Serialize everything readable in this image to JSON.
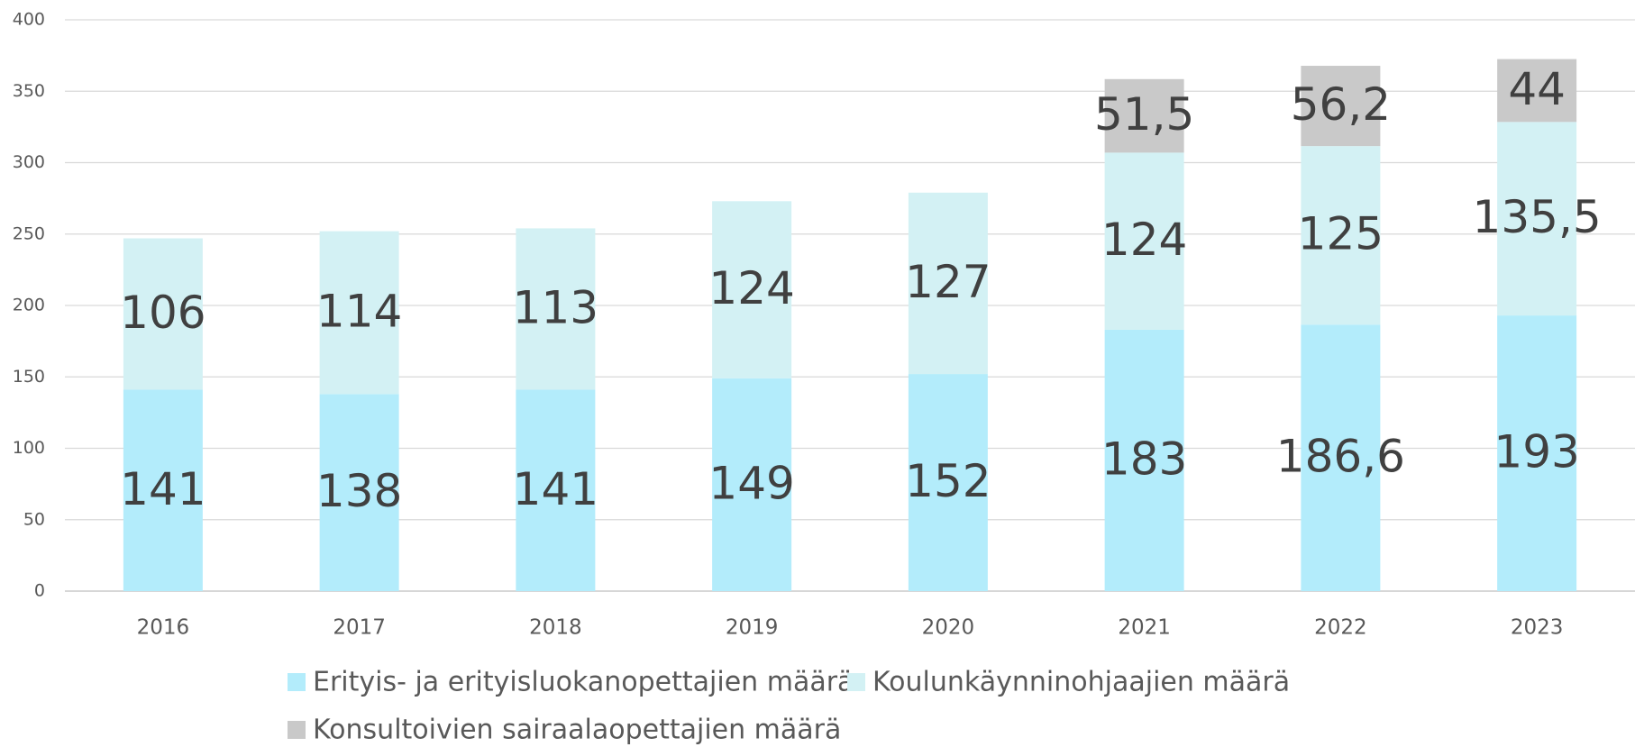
{
  "chart_data": {
    "type": "stacked_bar",
    "categories": [
      "2016",
      "2017",
      "2018",
      "2019",
      "2020",
      "2021",
      "2022",
      "2023"
    ],
    "series": [
      {
        "name": "Erityis- ja erityisluokanopettajien määrä",
        "color": "#b3ecfb",
        "values": [
          141,
          138,
          141,
          149,
          152,
          183,
          186.6,
          193
        ],
        "value_labels": [
          "141",
          "138",
          "141",
          "149",
          "152",
          "183",
          "186,6",
          "193"
        ]
      },
      {
        "name": "Koulunkäynninohjaajien määrä",
        "color": "#d3f1f4",
        "values": [
          106,
          114,
          113,
          124,
          127,
          124,
          125,
          135.5
        ],
        "value_labels": [
          "106",
          "114",
          "113",
          "124",
          "127",
          "124",
          "125",
          "135,5"
        ]
      },
      {
        "name": "Konsultoivien sairaalaopettajien määrä",
        "color": "#c9c9c9",
        "values": [
          null,
          null,
          null,
          null,
          null,
          51.5,
          56.2,
          44
        ],
        "value_labels": [
          null,
          null,
          null,
          null,
          null,
          "51,5",
          "56,2",
          "44"
        ]
      }
    ],
    "ylim": [
      0,
      400
    ],
    "yticks": [
      0,
      50,
      100,
      150,
      200,
      250,
      300,
      350,
      400
    ],
    "grid": true,
    "legend": "bottom"
  }
}
